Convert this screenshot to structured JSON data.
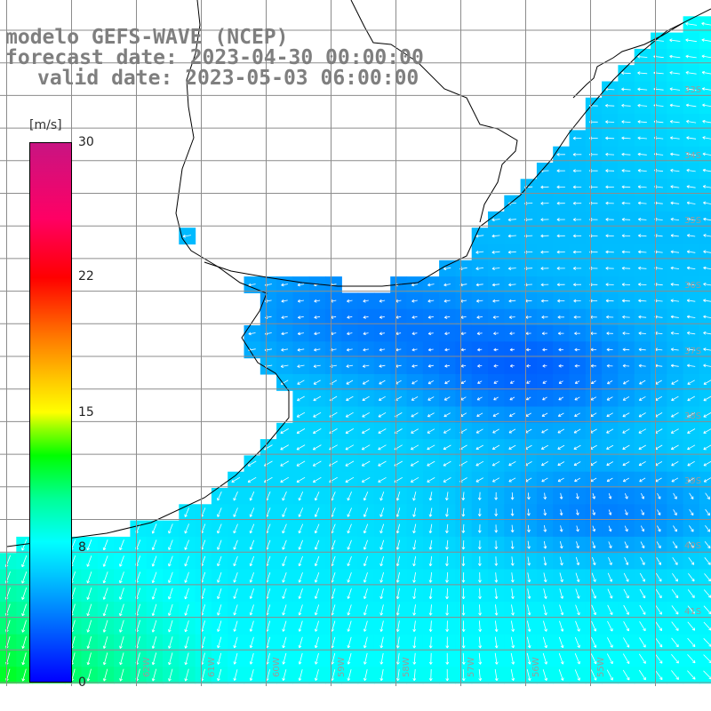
{
  "title_line1": "modelo GEFS-WAVE (NCEP)",
  "title_line2": "forecast date: 2023-04-30 00:00:00",
  "title_line3": "valid date: 2023-05-03 06:00:00",
  "colorbar": {
    "units": "[m/s]",
    "ticks": [
      "30",
      "22",
      "15",
      "8",
      "0"
    ],
    "tick_values": [
      30,
      22,
      15,
      8,
      0
    ],
    "min": 0,
    "max": 30
  },
  "grid": {
    "lat_labels": [
      "33S",
      "34S",
      "35S",
      "36S",
      "37S",
      "38S",
      "39S",
      "40S",
      "41S"
    ],
    "lon_labels": [
      "62W",
      "61W",
      "60W",
      "59W",
      "58W",
      "57W",
      "56W",
      "55W"
    ]
  },
  "colors": {
    "land": "#ffffff",
    "grid_line": "#8c8c8c",
    "coast": "#000000",
    "arrow": "#ffffff",
    "title": "#7f7f7f"
  }
}
